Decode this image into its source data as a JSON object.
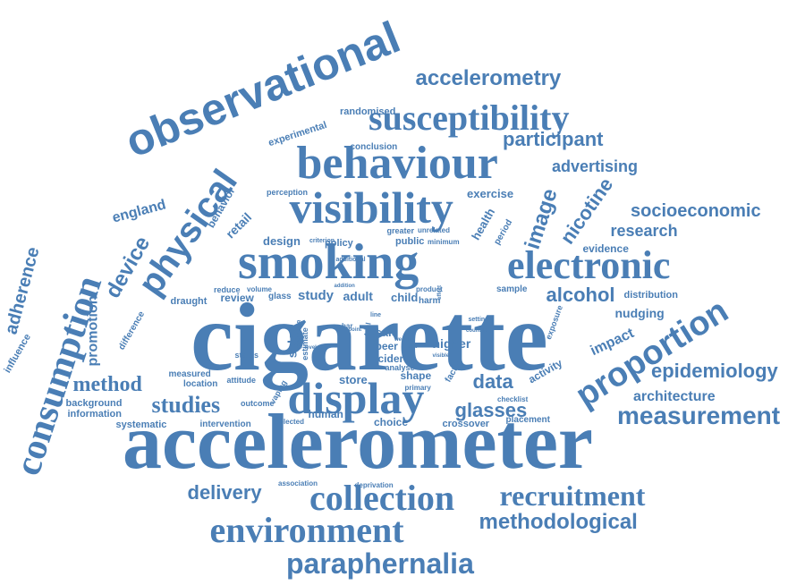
{
  "word_cloud": {
    "color": "#4a7eb5",
    "words": [
      "cigarette",
      "accelerometer",
      "smoking",
      "observational",
      "consumption",
      "behaviour",
      "susceptibility",
      "electronic",
      "display",
      "visibility",
      "environment",
      "collection",
      "proportion",
      "recruitment",
      "physical",
      "measurement",
      "paraphernalia",
      "accelerometry",
      "methodological",
      "epidemiology",
      "participant",
      "alcohol",
      "image",
      "nicotine",
      "studies",
      "method",
      "glasses",
      "socioeconomic",
      "advertising",
      "device",
      "delivery",
      "data",
      "architecture",
      "research",
      "promotion",
      "adherence",
      "impact",
      "nudging",
      "evidence",
      "england",
      "exercise",
      "retail",
      "store",
      "design",
      "adult",
      "study",
      "child",
      "higher",
      "beer",
      "sale",
      "cider",
      "shape",
      "human",
      "choice",
      "crossover",
      "systematic",
      "intervention",
      "attitude",
      "status",
      "sided",
      "review",
      "activity",
      "influence",
      "difference",
      "draught",
      "reduce",
      "volume",
      "glass",
      "policy",
      "public",
      "minimum",
      "unrelated",
      "greater",
      "period",
      "health",
      "experimental",
      "randomised",
      "conclusion",
      "behavior",
      "perception",
      "criterion",
      "additional",
      "exposure",
      "distribution",
      "sample",
      "placement",
      "factor",
      "primary",
      "analyse",
      "vaping",
      "selected",
      "outcome",
      "background",
      "information",
      "location",
      "measured",
      "deprivation",
      "association",
      "checklist",
      "harm",
      "product",
      "effect",
      "countrie",
      "addition",
      "setting",
      "trial",
      "bar",
      "estimate",
      "measure",
      "pupil",
      "line",
      "point",
      "level",
      "visible",
      "weekly",
      "size",
      "single"
    ]
  }
}
